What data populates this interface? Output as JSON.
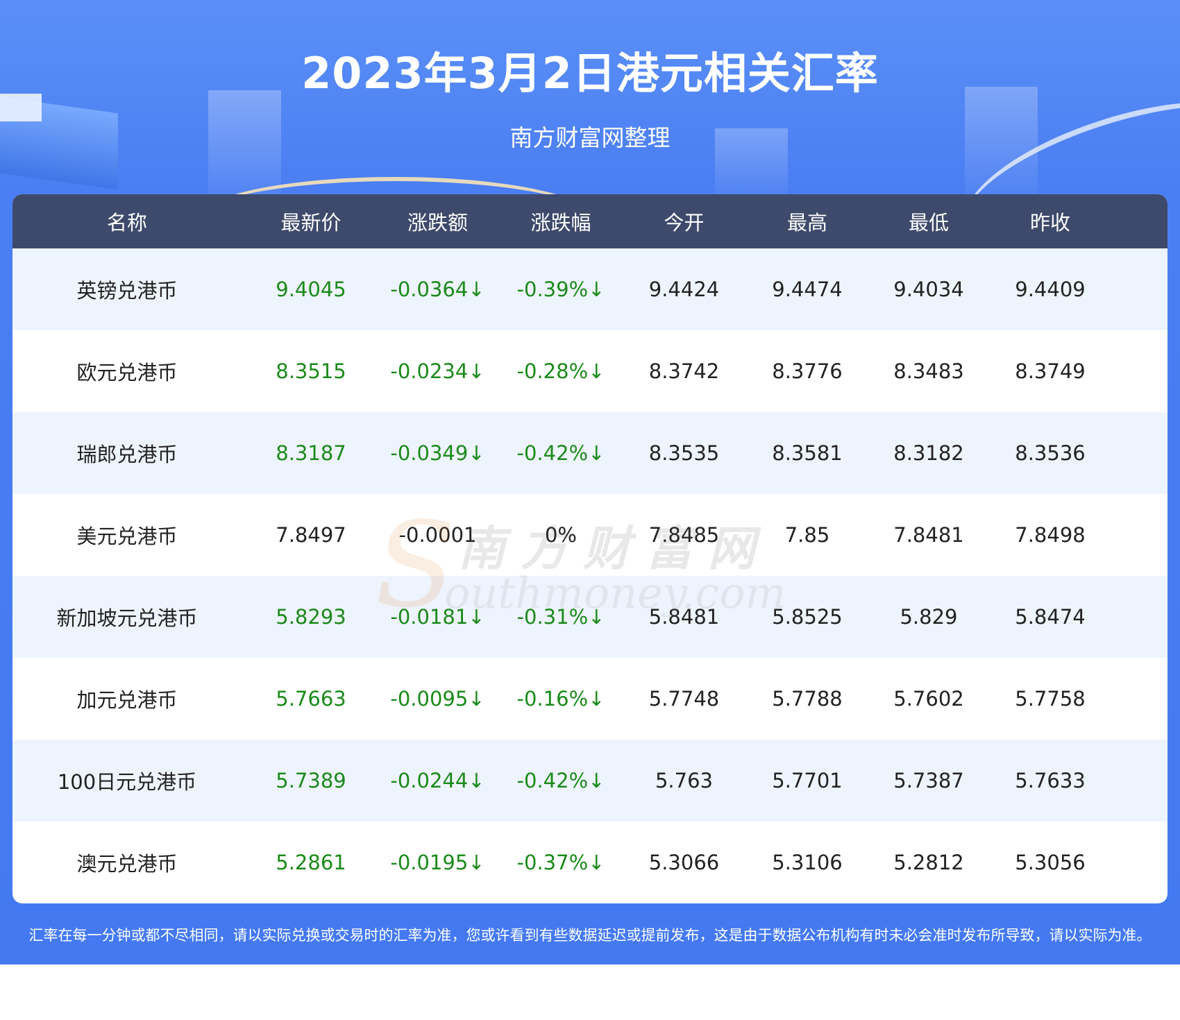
{
  "header": {
    "title": "2023年3月2日港元相关汇率",
    "subtitle": "南方财富网整理"
  },
  "table": {
    "columns": [
      "名称",
      "最新价",
      "涨跌额",
      "涨跌幅",
      "今开",
      "最高",
      "最低",
      "昨收"
    ],
    "rows": [
      {
        "name": "英镑兑港币",
        "latest": "9.4045",
        "change": "-0.0364↓",
        "pct": "-0.39%↓",
        "open": "9.4424",
        "high": "9.4474",
        "low": "9.4034",
        "prev": "9.4409",
        "down": true
      },
      {
        "name": "欧元兑港币",
        "latest": "8.3515",
        "change": "-0.0234↓",
        "pct": "-0.28%↓",
        "open": "8.3742",
        "high": "8.3776",
        "low": "8.3483",
        "prev": "8.3749",
        "down": true
      },
      {
        "name": "瑞郎兑港币",
        "latest": "8.3187",
        "change": "-0.0349↓",
        "pct": "-0.42%↓",
        "open": "8.3535",
        "high": "8.3581",
        "low": "8.3182",
        "prev": "8.3536",
        "down": true
      },
      {
        "name": "美元兑港币",
        "latest": "7.8497",
        "change": "-0.0001",
        "pct": "0%",
        "open": "7.8485",
        "high": "7.85",
        "low": "7.8481",
        "prev": "7.8498",
        "down": false
      },
      {
        "name": "新加坡元兑港币",
        "latest": "5.8293",
        "change": "-0.0181↓",
        "pct": "-0.31%↓",
        "open": "5.8481",
        "high": "5.8525",
        "low": "5.829",
        "prev": "5.8474",
        "down": true
      },
      {
        "name": "加元兑港币",
        "latest": "5.7663",
        "change": "-0.0095↓",
        "pct": "-0.16%↓",
        "open": "5.7748",
        "high": "5.7788",
        "low": "5.7602",
        "prev": "5.7758",
        "down": true
      },
      {
        "name": "100日元兑港币",
        "latest": "5.7389",
        "change": "-0.0244↓",
        "pct": "-0.42%↓",
        "open": "5.763",
        "high": "5.7701",
        "low": "5.7387",
        "prev": "5.7633",
        "down": true
      },
      {
        "name": "澳元兑港币",
        "latest": "5.2861",
        "change": "-0.0195↓",
        "pct": "-0.37%↓",
        "open": "5.3066",
        "high": "5.3106",
        "low": "5.2812",
        "prev": "5.3056",
        "down": true
      }
    ]
  },
  "watermark": {
    "cn": "南方财富网",
    "en_initial": "S",
    "en": "outhmoney.com"
  },
  "footnote": "汇率在每一分钟或都不尽相同，请以实际兑换或交易时的汇率为准，您或许看到有些数据延迟或提前发布，这是由于数据公布机构有时未必会准时发布所导致，请以实际为准。",
  "colors": {
    "header_bg": "#4479f1",
    "table_head_bg": "#3e4a6b",
    "row_alt_bg": "#eef4fd",
    "down_color": "#1a8a1a"
  }
}
